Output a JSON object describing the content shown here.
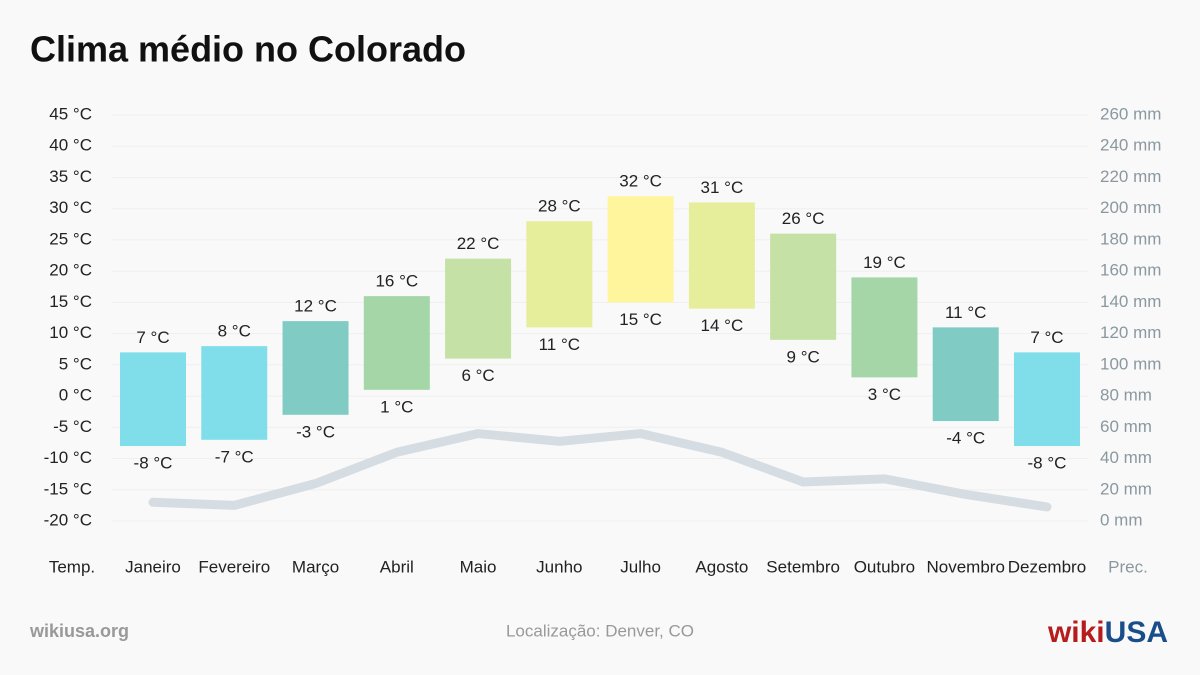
{
  "chart_data": {
    "type": "range-bar-line",
    "title": "Clima médio no Colorado",
    "y_axis_label": "Temp.",
    "y2_axis_label": "Prec.",
    "categories": [
      "Janeiro",
      "Fevereiro",
      "Março",
      "Abril",
      "Maio",
      "Junho",
      "Julho",
      "Agosto",
      "Setembro",
      "Outubro",
      "Novembro",
      "Dezembro"
    ],
    "bar_colors": [
      "#80deea",
      "#80deea",
      "#80cbc4",
      "#a5d6a7",
      "#c5e1a5",
      "#e6ee9c",
      "#fff59d",
      "#e6ee9c",
      "#c5e1a5",
      "#a5d6a7",
      "#80cbc4",
      "#80deea"
    ],
    "series": [
      {
        "values": [
          7,
          8,
          12,
          16,
          22,
          28,
          32,
          31,
          26,
          19,
          11,
          7
        ],
        "value_labels": [
          "7 °C",
          "8 °C",
          "12 °C",
          "16 °C",
          "22 °C",
          "28 °C",
          "32 °C",
          "31 °C",
          "26 °C",
          "19 °C",
          "11 °C",
          "7 °C"
        ]
      },
      {
        "values": [
          -8,
          -7,
          -3,
          1,
          6,
          11,
          15,
          14,
          9,
          3,
          -4,
          -8
        ],
        "value_labels": [
          "-8 °C",
          "-7 °C",
          "-3 °C",
          "1 °C",
          "6 °C",
          "11 °C",
          "15 °C",
          "14 °C",
          "9 °C",
          "3 °C",
          "-4 °C",
          "-8 °C"
        ]
      },
      {
        "values": [
          12,
          10,
          24,
          44,
          56,
          51,
          56,
          44,
          25,
          27,
          17,
          9
        ],
        "axis": "y2",
        "color": "#d5dde2"
      }
    ],
    "ylim": [
      -20,
      45
    ],
    "yticks": [
      {
        "value": -20,
        "label": "-20 °C"
      },
      {
        "value": -15,
        "label": "-15 °C"
      },
      {
        "value": -10,
        "label": "-10 °C"
      },
      {
        "value": -5,
        "label": "-5 °C"
      },
      {
        "value": 0,
        "label": "0 °C"
      },
      {
        "value": 5,
        "label": "5 °C"
      },
      {
        "value": 10,
        "label": "10 °C"
      },
      {
        "value": 15,
        "label": "15 °C"
      },
      {
        "value": 20,
        "label": "20 °C"
      },
      {
        "value": 25,
        "label": "25 °C"
      },
      {
        "value": 30,
        "label": "30 °C"
      },
      {
        "value": 35,
        "label": "35 °C"
      },
      {
        "value": 40,
        "label": "40 °C"
      },
      {
        "value": 45,
        "label": "45 °C"
      }
    ],
    "y2lim": [
      0,
      260
    ],
    "y2ticks": [
      {
        "value": 0,
        "label": "0 mm"
      },
      {
        "value": 20,
        "label": "20 mm"
      },
      {
        "value": 40,
        "label": "40 mm"
      },
      {
        "value": 60,
        "label": "60 mm"
      },
      {
        "value": 80,
        "label": "80 mm"
      },
      {
        "value": 100,
        "label": "100 mm"
      },
      {
        "value": 120,
        "label": "120 mm"
      },
      {
        "value": 140,
        "label": "140 mm"
      },
      {
        "value": 160,
        "label": "160 mm"
      },
      {
        "value": 180,
        "label": "180 mm"
      },
      {
        "value": 200,
        "label": "200 mm"
      },
      {
        "value": 220,
        "label": "220 mm"
      },
      {
        "value": 240,
        "label": "240 mm"
      },
      {
        "value": 260,
        "label": "260 mm"
      }
    ],
    "grid": true,
    "source": "wikiusa.org",
    "location_note": "Localização: Denver, CO",
    "logo": [
      "wiki",
      "USA"
    ]
  }
}
